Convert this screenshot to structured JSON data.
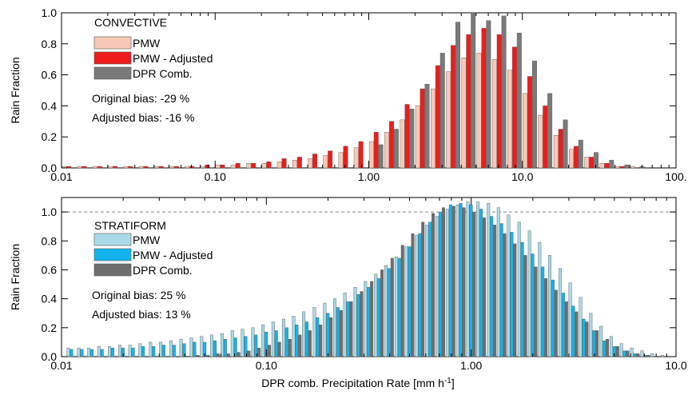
{
  "figure": {
    "xlabel": "DPR comb. Precipitation Rate [mm h",
    "xlabel_sup": "-1",
    "xlabel_end": "]"
  },
  "chart_data": [
    {
      "type": "bar",
      "title": "CONVECTIVE",
      "ylabel": "Rain Fraction",
      "xscale": "log",
      "xlim": [
        0.01,
        100
      ],
      "ylim": [
        0,
        1.0
      ],
      "xticks": [
        "0.01",
        "0.10",
        "1.00",
        "10.0",
        "100."
      ],
      "yticks": [
        "0.0",
        "0.2",
        "0.4",
        "0.6",
        "0.8",
        "1.0"
      ],
      "legend_position": "upper-left",
      "bias_lines": [
        "Original   bias: -29 %",
        "Adjusted bias: -16 %"
      ],
      "x": [
        0.0112,
        0.0141,
        0.0178,
        0.0224,
        0.0282,
        0.0355,
        0.0447,
        0.0562,
        0.0708,
        0.0891,
        0.112,
        0.141,
        0.178,
        0.224,
        0.282,
        0.355,
        0.447,
        0.562,
        0.708,
        0.891,
        1.12,
        1.41,
        1.78,
        2.24,
        2.82,
        3.55,
        4.47,
        5.62,
        7.08,
        8.91,
        11.2,
        14.1,
        17.8,
        22.4,
        28.2,
        35.5,
        44.7,
        56.2,
        70.8
      ],
      "series": [
        {
          "name": "PMW",
          "color": "#f6c9b6",
          "values": [
            0.01,
            0.01,
            0.01,
            0.01,
            0.01,
            0.01,
            0.01,
            0.01,
            0.01,
            0.01,
            0.02,
            0.02,
            0.03,
            0.03,
            0.04,
            0.05,
            0.06,
            0.08,
            0.1,
            0.13,
            0.17,
            0.23,
            0.31,
            0.4,
            0.51,
            0.62,
            0.71,
            0.74,
            0.7,
            0.63,
            0.48,
            0.34,
            0.21,
            0.12,
            0.07,
            0.03,
            0.01,
            0.01,
            0.0
          ]
        },
        {
          "name": "PMW - Adjusted",
          "color": "#ee1c1c",
          "values": [
            0.01,
            0.01,
            0.01,
            0.01,
            0.01,
            0.01,
            0.01,
            0.01,
            0.01,
            0.02,
            0.02,
            0.03,
            0.03,
            0.04,
            0.06,
            0.07,
            0.09,
            0.11,
            0.14,
            0.17,
            0.23,
            0.3,
            0.41,
            0.51,
            0.66,
            0.79,
            0.86,
            0.9,
            0.86,
            0.78,
            0.59,
            0.4,
            0.25,
            0.14,
            0.07,
            0.03,
            0.01,
            0.0,
            0.0
          ]
        },
        {
          "name": "DPR Comb.",
          "color": "#7a7a7a",
          "values": [
            0.0,
            0.0,
            0.0,
            0.0,
            0.0,
            0.0,
            0.0,
            0.0,
            0.0,
            0.0,
            0.0,
            0.0,
            0.0,
            0.0,
            0.0,
            0.0,
            0.0,
            0.0,
            0.0,
            0.0,
            0.15,
            0.25,
            0.38,
            0.54,
            0.74,
            0.94,
            1.0,
            0.95,
            0.98,
            0.87,
            0.69,
            0.48,
            0.31,
            0.18,
            0.1,
            0.05,
            0.02,
            0.01,
            0.0
          ]
        }
      ]
    },
    {
      "type": "bar",
      "title": "STRATIFORM",
      "ylabel": "Rain Fraction",
      "xscale": "log",
      "xlim": [
        0.01,
        10
      ],
      "ylim": [
        0,
        1.1
      ],
      "reference_line": 1.0,
      "xticks": [
        "0.01",
        "0.10",
        "1.00",
        "10.0"
      ],
      "yticks": [
        "0.0",
        "0.2",
        "0.4",
        "0.6",
        "0.8",
        "1.0"
      ],
      "legend_position": "upper-left",
      "bias_lines": [
        "Original   bias: 25 %",
        "Adjusted bias: 13 %"
      ],
      "x": [
        0.0112,
        0.0126,
        0.0141,
        0.0158,
        0.0178,
        0.02,
        0.0224,
        0.0251,
        0.0282,
        0.0316,
        0.0355,
        0.0398,
        0.0447,
        0.0501,
        0.0562,
        0.0631,
        0.0708,
        0.0794,
        0.0891,
        0.1,
        0.112,
        0.126,
        0.141,
        0.158,
        0.178,
        0.2,
        0.224,
        0.251,
        0.282,
        0.316,
        0.355,
        0.398,
        0.447,
        0.501,
        0.562,
        0.631,
        0.708,
        0.794,
        0.891,
        1.0,
        1.12,
        1.26,
        1.41,
        1.58,
        1.78,
        2.0,
        2.24,
        2.51,
        2.82,
        3.16,
        3.55,
        3.98,
        4.47,
        5.01,
        5.62,
        6.31,
        7.08,
        7.94,
        8.91
      ],
      "series": [
        {
          "name": "PMW",
          "color": "#a9d9e6",
          "values": [
            0.06,
            0.06,
            0.06,
            0.07,
            0.07,
            0.08,
            0.08,
            0.09,
            0.1,
            0.1,
            0.11,
            0.12,
            0.13,
            0.14,
            0.15,
            0.16,
            0.18,
            0.19,
            0.2,
            0.22,
            0.24,
            0.26,
            0.28,
            0.31,
            0.34,
            0.37,
            0.4,
            0.44,
            0.48,
            0.52,
            0.57,
            0.63,
            0.69,
            0.76,
            0.84,
            0.91,
            0.97,
            1.02,
            1.05,
            1.07,
            1.07,
            1.06,
            1.03,
            0.98,
            0.93,
            0.87,
            0.79,
            0.7,
            0.61,
            0.51,
            0.41,
            0.3,
            0.21,
            0.14,
            0.09,
            0.06,
            0.04,
            0.02,
            0.01
          ]
        },
        {
          "name": "PMW - Adjusted",
          "color": "#14b4ee",
          "values": [
            0.05,
            0.05,
            0.05,
            0.05,
            0.06,
            0.06,
            0.06,
            0.07,
            0.07,
            0.08,
            0.08,
            0.09,
            0.1,
            0.1,
            0.11,
            0.12,
            0.13,
            0.14,
            0.15,
            0.17,
            0.18,
            0.2,
            0.22,
            0.24,
            0.27,
            0.3,
            0.34,
            0.38,
            0.43,
            0.48,
            0.54,
            0.61,
            0.68,
            0.76,
            0.85,
            0.93,
            1.0,
            1.05,
            1.06,
            1.05,
            1.02,
            0.97,
            0.92,
            0.86,
            0.79,
            0.71,
            0.62,
            0.53,
            0.44,
            0.35,
            0.26,
            0.18,
            0.11,
            0.07,
            0.04,
            0.02,
            0.01,
            0.0,
            0.0
          ]
        },
        {
          "name": "DPR Comb.",
          "color": "#6e6e6e",
          "values": [
            0.0,
            0.0,
            0.0,
            0.0,
            0.0,
            0.0,
            0.0,
            0.0,
            0.0,
            0.0,
            0.0,
            0.0,
            0.01,
            0.01,
            0.02,
            0.02,
            0.03,
            0.04,
            0.06,
            0.08,
            0.1,
            0.12,
            0.15,
            0.18,
            0.22,
            0.27,
            0.32,
            0.38,
            0.45,
            0.52,
            0.6,
            0.68,
            0.77,
            0.85,
            0.93,
            0.99,
            1.03,
            1.04,
            1.03,
            1.0,
            0.96,
            0.91,
            0.85,
            0.78,
            0.7,
            0.62,
            0.54,
            0.46,
            0.38,
            0.31,
            0.24,
            0.18,
            0.12,
            0.07,
            0.04,
            0.02,
            0.01,
            0.0,
            0.0
          ]
        }
      ]
    }
  ]
}
